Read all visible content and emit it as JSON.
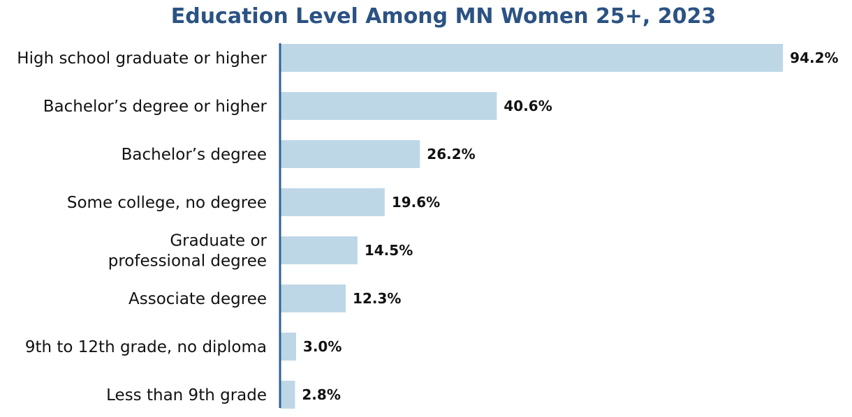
{
  "chart_data": {
    "type": "bar",
    "orientation": "horizontal",
    "title": "Education Level Among MN Women 25+, 2023",
    "categories": [
      "High school graduate or higher",
      "Bachelor’s degree or higher",
      "Bachelor’s degree",
      "Some college, no degree",
      "Graduate or\nprofessional degree",
      "Associate degree",
      "9th to 12th grade, no diploma",
      "Less than 9th grade"
    ],
    "values": [
      94.2,
      40.6,
      26.2,
      19.6,
      14.5,
      12.3,
      3.0,
      2.8
    ],
    "value_labels": [
      "94.2%",
      "40.6%",
      "26.2%",
      "19.6%",
      "14.5%",
      "12.3%",
      "3.0%",
      "2.8%"
    ],
    "xlim": [
      0,
      100
    ],
    "grid": false,
    "legend": "none",
    "colors": {
      "bar": "#bdd7e7",
      "axis": "#2f5f94",
      "title": "#2b5283",
      "text": "#111111"
    }
  }
}
